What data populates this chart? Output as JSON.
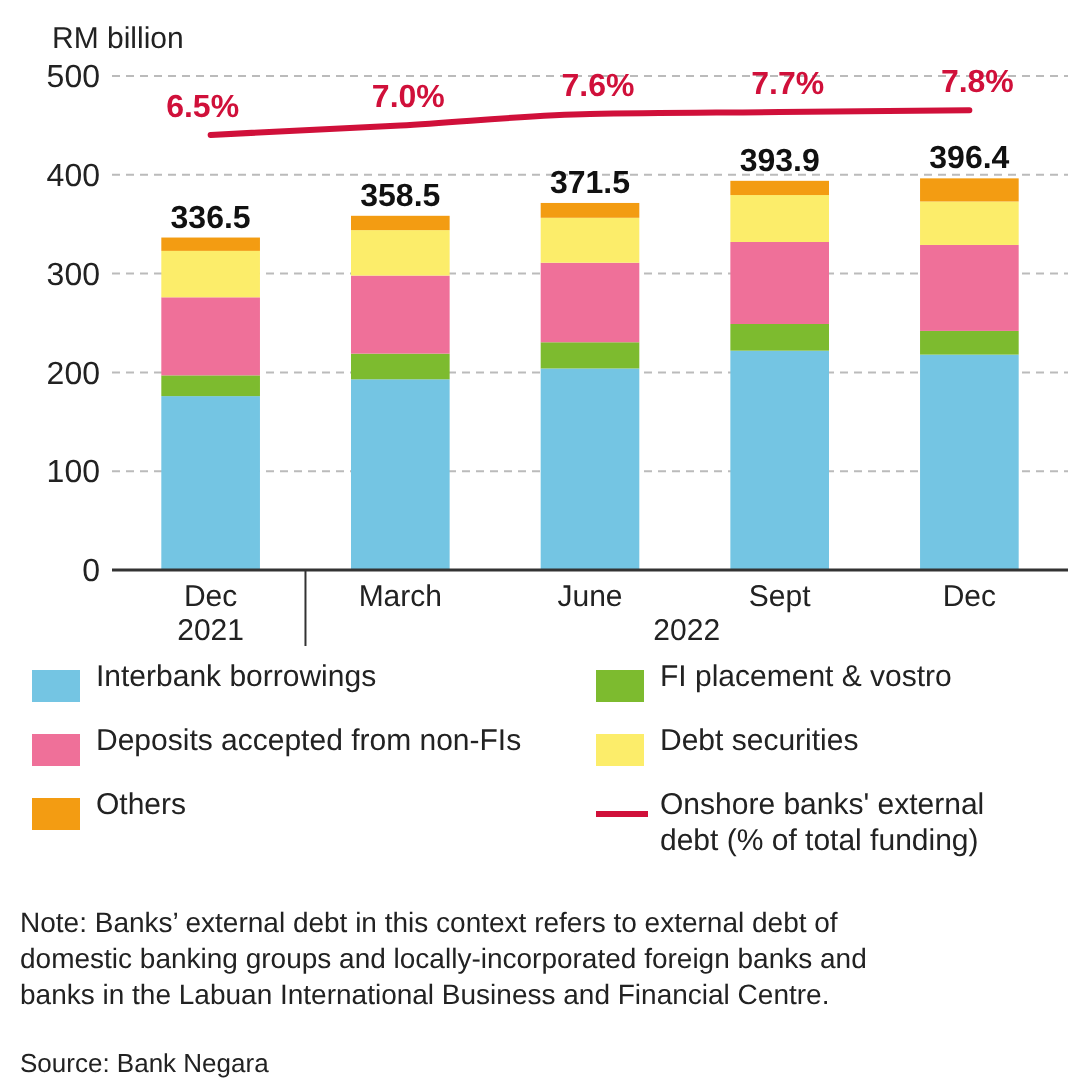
{
  "chart_data": {
    "type": "bar",
    "stacked": true,
    "ylabel": "RM billion",
    "categories": [
      "Dec 2021",
      "March",
      "June",
      "Sept",
      "Dec"
    ],
    "ylim": [
      0,
      500
    ],
    "yticks": [
      0,
      100,
      200,
      300,
      400,
      500
    ],
    "grid": "y",
    "legend": "bottom",
    "y2lim": [
      -16.4,
      9.6
    ],
    "series": [
      {
        "name": "Interbank borrowings",
        "color": "#74c5e3",
        "values": [
          176,
          193,
          204,
          222,
          218
        ]
      },
      {
        "name": "FI placement & vostro",
        "color": "#7dbb2f",
        "values": [
          21,
          26,
          26.5,
          27,
          24
        ]
      },
      {
        "name": "Deposits accepted from non-FIs",
        "color": "#ef7099",
        "values": [
          79,
          79,
          80.5,
          83,
          87
        ]
      },
      {
        "name": "Debt securities",
        "color": "#fced6a",
        "values": [
          47,
          46,
          45.5,
          47.5,
          44
        ]
      },
      {
        "name": "Others",
        "color": "#f39c12",
        "values": [
          13.5,
          14.5,
          15,
          14.4,
          23.4
        ]
      },
      {
        "name": "Onshore banks' external debt (% of total funding)",
        "type": "line",
        "axis": "y2",
        "color": "#d0103a",
        "values": [
          6.5,
          7.0,
          7.6,
          7.7,
          7.8
        ],
        "value_labels": [
          "6.5%",
          "7.0%",
          "7.6%",
          "7.7%",
          "7.8%"
        ]
      }
    ],
    "totals": [
      "336.5",
      "358.5",
      "371.5",
      "393.9",
      "396.4"
    ],
    "annotations": [
      "2022",
      "Note: Banks’ external debt in this context refers to external debt of domestic banking groups and locally-incorporated foreign banks and banks in the Labuan International Business and Financial Centre.",
      "Source: Bank Negara"
    ]
  }
}
